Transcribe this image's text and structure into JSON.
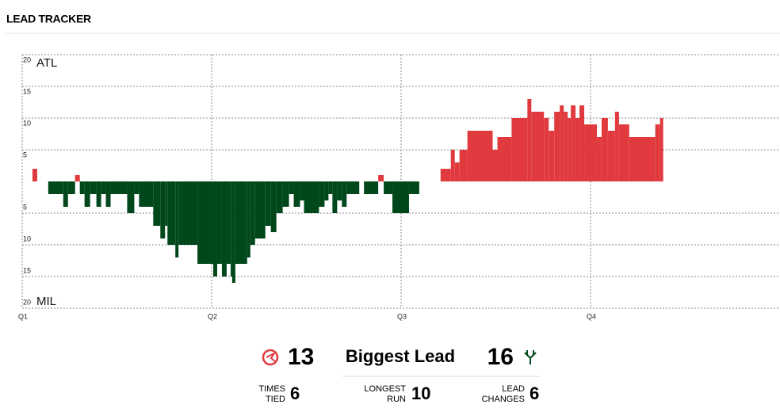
{
  "header": {
    "title": "LEAD TRACKER"
  },
  "chart_data": {
    "type": "step-bar",
    "teams": [
      {
        "name": "ATL",
        "color": "#e03a3e"
      },
      {
        "name": "MIL",
        "color": "#00471b"
      }
    ],
    "x": [
      0,
      0.65,
      0.95,
      1.65,
      2.6,
      2.9,
      3.35,
      3.65,
      3.95,
      4.3,
      4.7,
      5.0,
      5.3,
      5.6,
      6.65,
      7.1,
      7.4,
      8.3,
      8.75,
      9.05,
      9.2,
      9.7,
      9.9,
      11.1,
      12.1,
      12.35,
      12.65,
      12.95,
      13.2,
      13.3,
      13.5,
      14.25,
      14.45,
      14.75,
      15.4,
      15.75,
      16.1,
      16.5,
      16.9,
      17.2,
      17.6,
      17.85,
      18.8,
      19.15,
      19.4,
      19.65,
      19.95,
      20.25,
      20.55,
      21.35,
      21.65,
      22.55,
      22.9,
      23.45,
      24.5,
      25.15,
      26.5,
      27.15,
      27.4,
      27.7,
      28.2,
      29.8,
      30.1,
      31,
      32,
      32.25,
      33.05,
      33.35,
      33.7,
      34.05,
      34.3,
      34.55,
      34.75,
      35.05,
      35.3,
      35.6,
      36.4,
      36.7,
      37.1,
      37.55,
      37.8,
      38.45,
      40.1,
      40.4,
      40.6
    ],
    "values": [
      0,
      2,
      0,
      -2,
      -4,
      -2,
      1,
      -2,
      -4,
      -2,
      -4,
      -2,
      -4,
      -2,
      -5,
      -2,
      -4,
      -7,
      -9,
      -7,
      -10,
      -12,
      -10,
      -13,
      -15,
      -13,
      -15,
      -13,
      -15,
      -16,
      -13,
      -12,
      -10,
      -9,
      -7,
      -8,
      -5,
      -4,
      -2,
      -4,
      -3,
      -5,
      -4,
      -3,
      -2,
      -5,
      -3,
      -4,
      -2,
      0,
      -2,
      1,
      -2,
      -5,
      -2,
      0,
      2,
      5,
      3,
      5,
      8,
      5,
      7,
      10,
      13,
      11,
      10,
      8,
      11,
      12,
      11,
      10,
      12,
      10,
      12,
      9,
      7,
      10,
      8,
      11,
      9,
      7,
      9,
      10,
      null
    ],
    "xlim": [
      0,
      48
    ],
    "xticks": [
      {
        "value": 0,
        "label": "Q1"
      },
      {
        "value": 12,
        "label": "Q2"
      },
      {
        "value": 24,
        "label": "Q3"
      },
      {
        "value": 36,
        "label": "Q4"
      }
    ],
    "ylim": [
      -20,
      20
    ],
    "yticks": [
      20,
      15,
      10,
      5,
      {
        "value": -5,
        "label": "5"
      },
      {
        "value": -10,
        "label": "10"
      },
      {
        "value": -15,
        "label": "15"
      },
      {
        "value": -20,
        "label": "20"
      }
    ],
    "grid": true
  },
  "stats": {
    "atl_biggest_lead": 13,
    "biggest_lead_label": "Biggest Lead",
    "mil_biggest_lead": 16,
    "times_tied_label": [
      "TIMES",
      "TIED"
    ],
    "times_tied": 6,
    "longest_run_label": [
      "LONGEST",
      "RUN"
    ],
    "longest_run": 10,
    "lead_changes_label": [
      "LEAD",
      "CHANGES"
    ],
    "lead_changes": 6
  }
}
